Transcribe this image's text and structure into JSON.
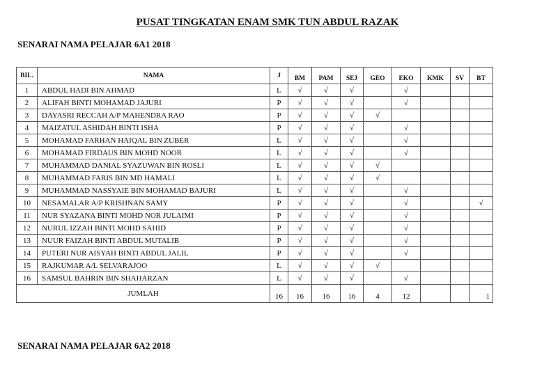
{
  "title": "PUSAT TINGKATAN ENAM SMK TUN ABDUL RAZAK",
  "section1_title": "SENARAI NAMA PELAJAR 6A1  2018",
  "section2_title": "SENARAI NAMA PELAJAR 6A2  2018",
  "table": {
    "headers": [
      "BIL.",
      "NAMA",
      "J",
      "BM",
      "PAM",
      "SEJ",
      "GEO",
      "EKO",
      "KMK",
      "SV",
      "BT"
    ],
    "rows": [
      {
        "bil": "1",
        "nama": "ABDUL HADI BIN AHMAD",
        "j": "L",
        "marks": [
          "√",
          "√",
          "√",
          "",
          "√",
          "",
          "",
          ""
        ]
      },
      {
        "bil": "2",
        "nama": "ALIFAH BINTI MOHAMAD JAJURI",
        "j": "P",
        "marks": [
          "√",
          "√",
          "√",
          "",
          "√",
          "",
          "",
          ""
        ]
      },
      {
        "bil": "3",
        "nama": "DAYASRI RECCAH A/P MAHENDRA RAO",
        "j": "P",
        "marks": [
          "√",
          "√",
          "√",
          "√",
          "",
          "",
          "",
          ""
        ]
      },
      {
        "bil": "4",
        "nama": "MAIZATUL  ASHIDAH BINTI ISHA",
        "j": "P",
        "marks": [
          "√",
          "√",
          "√",
          "",
          "√",
          "",
          "",
          ""
        ]
      },
      {
        "bil": "5",
        "nama": "MOHAMAD FARHAN HAIQAL BIN ZUBER",
        "j": "L",
        "marks": [
          "√",
          "√",
          "√",
          "",
          "√",
          "",
          "",
          ""
        ]
      },
      {
        "bil": "6",
        "nama": "MOHAMAD FIRDAUS BIN MOHD NOOR",
        "j": "L",
        "marks": [
          "√",
          "√",
          "√",
          "",
          "√",
          "",
          "",
          ""
        ]
      },
      {
        "bil": "7",
        "nama": "MUHAMMAD DANIAL SYAZUWAN BIN ROSLI",
        "j": "L",
        "marks": [
          "√",
          "√",
          "√",
          "√",
          "",
          "",
          "",
          ""
        ]
      },
      {
        "bil": "8",
        "nama": "MUHAMMAD FARIS BIN MD HAMALI",
        "j": "L",
        "marks": [
          "√",
          "√",
          "√",
          "√",
          "",
          "",
          "",
          ""
        ]
      },
      {
        "bil": "9",
        "nama": "MUHAMMAD NASSYAIE BIN MOHAMAD BAJURI",
        "j": "L",
        "marks": [
          "√",
          "√",
          "√",
          "",
          "√",
          "",
          "",
          ""
        ]
      },
      {
        "bil": "10",
        "nama": "NESAMALAR A/P KRISHNAN SAMY",
        "j": "P",
        "marks": [
          "√",
          "√",
          "√",
          "",
          "√",
          "",
          "",
          "√"
        ]
      },
      {
        "bil": "11",
        "nama": "NUR SYAZANA BINTI MOHD NOR JULAIMI",
        "j": "P",
        "marks": [
          "√",
          "√",
          "√",
          "",
          "√",
          "",
          "",
          ""
        ]
      },
      {
        "bil": "12",
        "nama": "NURUL IZZAH BINTI MOHD SAHID",
        "j": "P",
        "marks": [
          "√",
          "√",
          "√",
          "",
          "√",
          "",
          "",
          ""
        ]
      },
      {
        "bil": "13",
        "nama": "NUUR FAIZAH BINTI ABDUL MUTALIB",
        "j": "P",
        "marks": [
          "√",
          "√",
          "√",
          "",
          "√",
          "",
          "",
          ""
        ]
      },
      {
        "bil": "14",
        "nama": "PUTERI NUR AISYAH BINTI ABDUL JALIL",
        "j": "P",
        "marks": [
          "√",
          "√",
          "√",
          "",
          "√",
          "",
          "",
          ""
        ]
      },
      {
        "bil": "15",
        "nama": "RAJKUMAR A/L SELVARAJOO",
        "j": "L",
        "marks": [
          "√",
          "√",
          "√",
          "√",
          "",
          "",
          "",
          ""
        ]
      },
      {
        "bil": "16",
        "nama": "SAMSUL BAHRIN BIN SHAHARZAN",
        "j": "L",
        "marks": [
          "√",
          "√",
          "√",
          "",
          "√",
          "",
          "",
          ""
        ]
      }
    ],
    "total_label": "JUMLAH",
    "totals": [
      "16",
      "16",
      "16",
      "16",
      "4",
      "12",
      "",
      "",
      "1"
    ]
  }
}
